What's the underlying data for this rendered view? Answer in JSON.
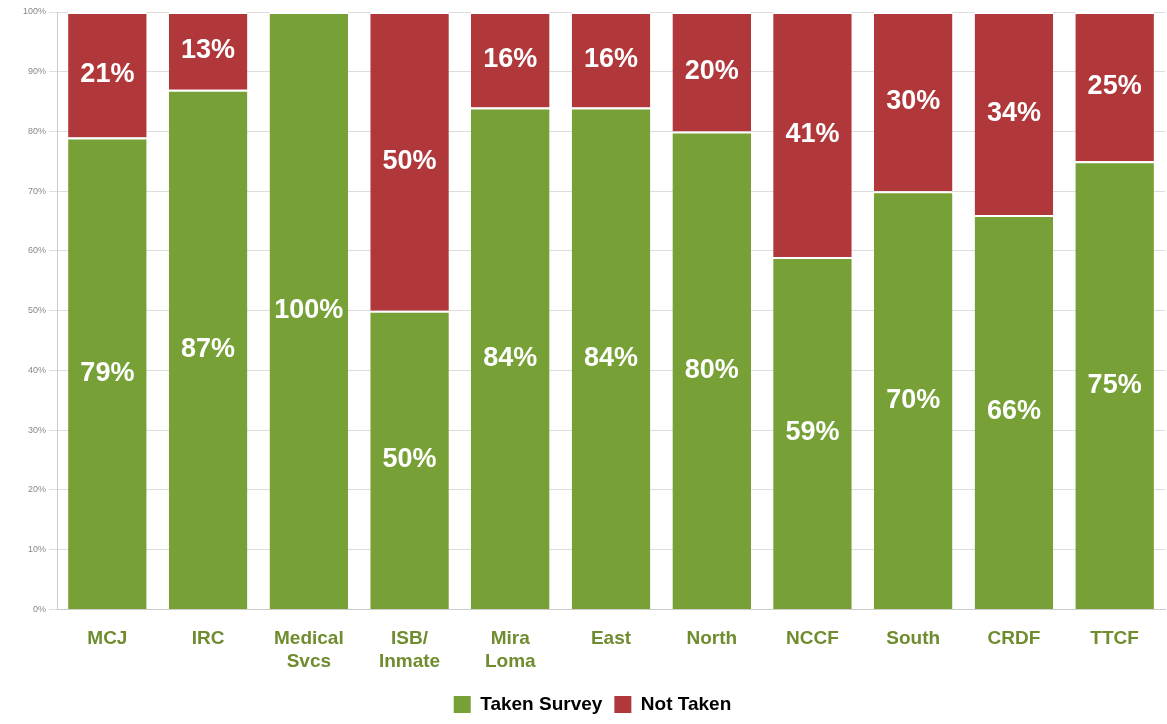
{
  "chart_data": {
    "type": "bar",
    "stacked": true,
    "categories": [
      "MCJ",
      "IRC",
      "Medical Svcs",
      "ISB/Inmate",
      "Mira Loma",
      "East",
      "North",
      "NCCF",
      "South",
      "CRDF",
      "TTCF"
    ],
    "series": [
      {
        "name": "Taken Survey",
        "color": "#77a136",
        "values": [
          79,
          87,
          100,
          50,
          84,
          84,
          80,
          59,
          70,
          66,
          75
        ],
        "value_labels": [
          "79%",
          "87%",
          "100%",
          "50%",
          "84%",
          "84%",
          "80%",
          "59%",
          "70%",
          "66%",
          "75%"
        ]
      },
      {
        "name": "Not Taken",
        "color": "#b0383b",
        "values": [
          21,
          13,
          0,
          50,
          16,
          16,
          20,
          41,
          30,
          34,
          25
        ],
        "value_labels": [
          "21%",
          "13%",
          null,
          "50%",
          "16%",
          "16%",
          "20%",
          "41%",
          "30%",
          "34%",
          "25%"
        ]
      }
    ],
    "ylim": [
      0,
      100
    ],
    "yticks": [
      {
        "value": 0,
        "label": "0%"
      },
      {
        "value": 10,
        "label": "10%"
      },
      {
        "value": 20,
        "label": "20%"
      },
      {
        "value": 30,
        "label": "30%"
      },
      {
        "value": 40,
        "label": "40%"
      },
      {
        "value": 50,
        "label": "50%"
      },
      {
        "value": 60,
        "label": "60%"
      },
      {
        "value": 70,
        "label": "70%"
      },
      {
        "value": 80,
        "label": "80%"
      },
      {
        "value": 90,
        "label": "90%"
      },
      {
        "value": 100,
        "label": "100%"
      }
    ],
    "grid": "y",
    "legend": "bottom"
  }
}
